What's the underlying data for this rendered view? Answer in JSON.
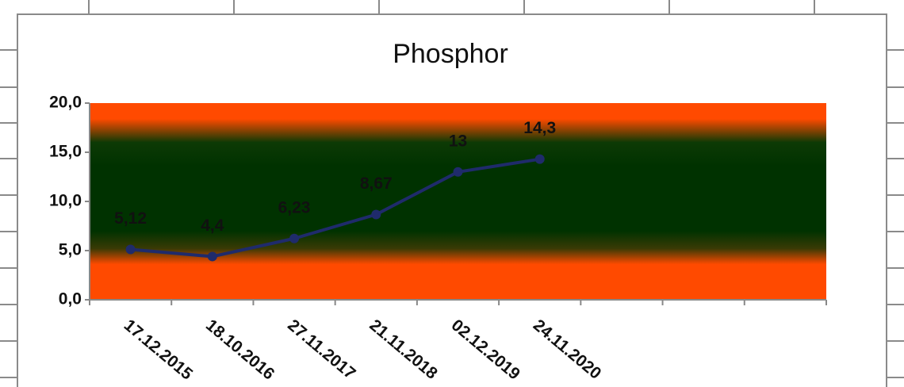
{
  "chart_data": {
    "type": "line",
    "title": "Phosphor",
    "categories": [
      "17.12.2015",
      "18.10.2016",
      "27.11.2017",
      "21.11.2018",
      "02.12.2019",
      "24.11.2020",
      null,
      null,
      null
    ],
    "series": [
      {
        "name": "Phosphor",
        "color": "#1f2b6b",
        "values": [
          5.12,
          4.4,
          6.23,
          8.67,
          13,
          14.3,
          null,
          null,
          null
        ],
        "value_labels": [
          "5,12",
          "4,4",
          "6,23",
          "8,67",
          "13",
          "14,3",
          null,
          null,
          null
        ]
      }
    ],
    "ylim": [
      0,
      20
    ],
    "yticks": [
      {
        "value": 0,
        "label": "0,0"
      },
      {
        "value": 5,
        "label": "5,0"
      },
      {
        "value": 10,
        "label": "10,0"
      },
      {
        "value": 15,
        "label": "15,0"
      },
      {
        "value": 20,
        "label": "20,0"
      }
    ]
  }
}
